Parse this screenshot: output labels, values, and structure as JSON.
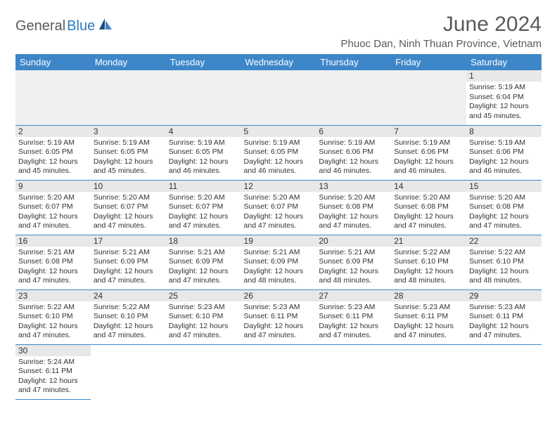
{
  "logo": {
    "general": "General",
    "blue": "Blue"
  },
  "title": "June 2024",
  "location": "Phuoc Dan, Ninh Thuan Province, Vietnam",
  "colors": {
    "header_bg": "#3d87c9",
    "header_text": "#ffffff",
    "daynum_bg": "#e8e8e8",
    "border": "#3d87c9",
    "empty_bg": "#f0f0f0",
    "text": "#333333",
    "title_text": "#5a5a5a"
  },
  "day_headers": [
    "Sunday",
    "Monday",
    "Tuesday",
    "Wednesday",
    "Thursday",
    "Friday",
    "Saturday"
  ],
  "weeks": [
    [
      null,
      null,
      null,
      null,
      null,
      null,
      {
        "n": "1",
        "sunrise": "Sunrise: 5:19 AM",
        "sunset": "Sunset: 6:04 PM",
        "daylight": "Daylight: 12 hours and 45 minutes."
      }
    ],
    [
      {
        "n": "2",
        "sunrise": "Sunrise: 5:19 AM",
        "sunset": "Sunset: 6:05 PM",
        "daylight": "Daylight: 12 hours and 45 minutes."
      },
      {
        "n": "3",
        "sunrise": "Sunrise: 5:19 AM",
        "sunset": "Sunset: 6:05 PM",
        "daylight": "Daylight: 12 hours and 45 minutes."
      },
      {
        "n": "4",
        "sunrise": "Sunrise: 5:19 AM",
        "sunset": "Sunset: 6:05 PM",
        "daylight": "Daylight: 12 hours and 46 minutes."
      },
      {
        "n": "5",
        "sunrise": "Sunrise: 5:19 AM",
        "sunset": "Sunset: 6:05 PM",
        "daylight": "Daylight: 12 hours and 46 minutes."
      },
      {
        "n": "6",
        "sunrise": "Sunrise: 5:19 AM",
        "sunset": "Sunset: 6:06 PM",
        "daylight": "Daylight: 12 hours and 46 minutes."
      },
      {
        "n": "7",
        "sunrise": "Sunrise: 5:19 AM",
        "sunset": "Sunset: 6:06 PM",
        "daylight": "Daylight: 12 hours and 46 minutes."
      },
      {
        "n": "8",
        "sunrise": "Sunrise: 5:19 AM",
        "sunset": "Sunset: 6:06 PM",
        "daylight": "Daylight: 12 hours and 46 minutes."
      }
    ],
    [
      {
        "n": "9",
        "sunrise": "Sunrise: 5:20 AM",
        "sunset": "Sunset: 6:07 PM",
        "daylight": "Daylight: 12 hours and 47 minutes."
      },
      {
        "n": "10",
        "sunrise": "Sunrise: 5:20 AM",
        "sunset": "Sunset: 6:07 PM",
        "daylight": "Daylight: 12 hours and 47 minutes."
      },
      {
        "n": "11",
        "sunrise": "Sunrise: 5:20 AM",
        "sunset": "Sunset: 6:07 PM",
        "daylight": "Daylight: 12 hours and 47 minutes."
      },
      {
        "n": "12",
        "sunrise": "Sunrise: 5:20 AM",
        "sunset": "Sunset: 6:07 PM",
        "daylight": "Daylight: 12 hours and 47 minutes."
      },
      {
        "n": "13",
        "sunrise": "Sunrise: 5:20 AM",
        "sunset": "Sunset: 6:08 PM",
        "daylight": "Daylight: 12 hours and 47 minutes."
      },
      {
        "n": "14",
        "sunrise": "Sunrise: 5:20 AM",
        "sunset": "Sunset: 6:08 PM",
        "daylight": "Daylight: 12 hours and 47 minutes."
      },
      {
        "n": "15",
        "sunrise": "Sunrise: 5:20 AM",
        "sunset": "Sunset: 6:08 PM",
        "daylight": "Daylight: 12 hours and 47 minutes."
      }
    ],
    [
      {
        "n": "16",
        "sunrise": "Sunrise: 5:21 AM",
        "sunset": "Sunset: 6:08 PM",
        "daylight": "Daylight: 12 hours and 47 minutes."
      },
      {
        "n": "17",
        "sunrise": "Sunrise: 5:21 AM",
        "sunset": "Sunset: 6:09 PM",
        "daylight": "Daylight: 12 hours and 47 minutes."
      },
      {
        "n": "18",
        "sunrise": "Sunrise: 5:21 AM",
        "sunset": "Sunset: 6:09 PM",
        "daylight": "Daylight: 12 hours and 47 minutes."
      },
      {
        "n": "19",
        "sunrise": "Sunrise: 5:21 AM",
        "sunset": "Sunset: 6:09 PM",
        "daylight": "Daylight: 12 hours and 48 minutes."
      },
      {
        "n": "20",
        "sunrise": "Sunrise: 5:21 AM",
        "sunset": "Sunset: 6:09 PM",
        "daylight": "Daylight: 12 hours and 48 minutes."
      },
      {
        "n": "21",
        "sunrise": "Sunrise: 5:22 AM",
        "sunset": "Sunset: 6:10 PM",
        "daylight": "Daylight: 12 hours and 48 minutes."
      },
      {
        "n": "22",
        "sunrise": "Sunrise: 5:22 AM",
        "sunset": "Sunset: 6:10 PM",
        "daylight": "Daylight: 12 hours and 48 minutes."
      }
    ],
    [
      {
        "n": "23",
        "sunrise": "Sunrise: 5:22 AM",
        "sunset": "Sunset: 6:10 PM",
        "daylight": "Daylight: 12 hours and 47 minutes."
      },
      {
        "n": "24",
        "sunrise": "Sunrise: 5:22 AM",
        "sunset": "Sunset: 6:10 PM",
        "daylight": "Daylight: 12 hours and 47 minutes."
      },
      {
        "n": "25",
        "sunrise": "Sunrise: 5:23 AM",
        "sunset": "Sunset: 6:10 PM",
        "daylight": "Daylight: 12 hours and 47 minutes."
      },
      {
        "n": "26",
        "sunrise": "Sunrise: 5:23 AM",
        "sunset": "Sunset: 6:11 PM",
        "daylight": "Daylight: 12 hours and 47 minutes."
      },
      {
        "n": "27",
        "sunrise": "Sunrise: 5:23 AM",
        "sunset": "Sunset: 6:11 PM",
        "daylight": "Daylight: 12 hours and 47 minutes."
      },
      {
        "n": "28",
        "sunrise": "Sunrise: 5:23 AM",
        "sunset": "Sunset: 6:11 PM",
        "daylight": "Daylight: 12 hours and 47 minutes."
      },
      {
        "n": "29",
        "sunrise": "Sunrise: 5:23 AM",
        "sunset": "Sunset: 6:11 PM",
        "daylight": "Daylight: 12 hours and 47 minutes."
      }
    ],
    [
      {
        "n": "30",
        "sunrise": "Sunrise: 5:24 AM",
        "sunset": "Sunset: 6:11 PM",
        "daylight": "Daylight: 12 hours and 47 minutes."
      },
      null,
      null,
      null,
      null,
      null,
      null
    ]
  ]
}
